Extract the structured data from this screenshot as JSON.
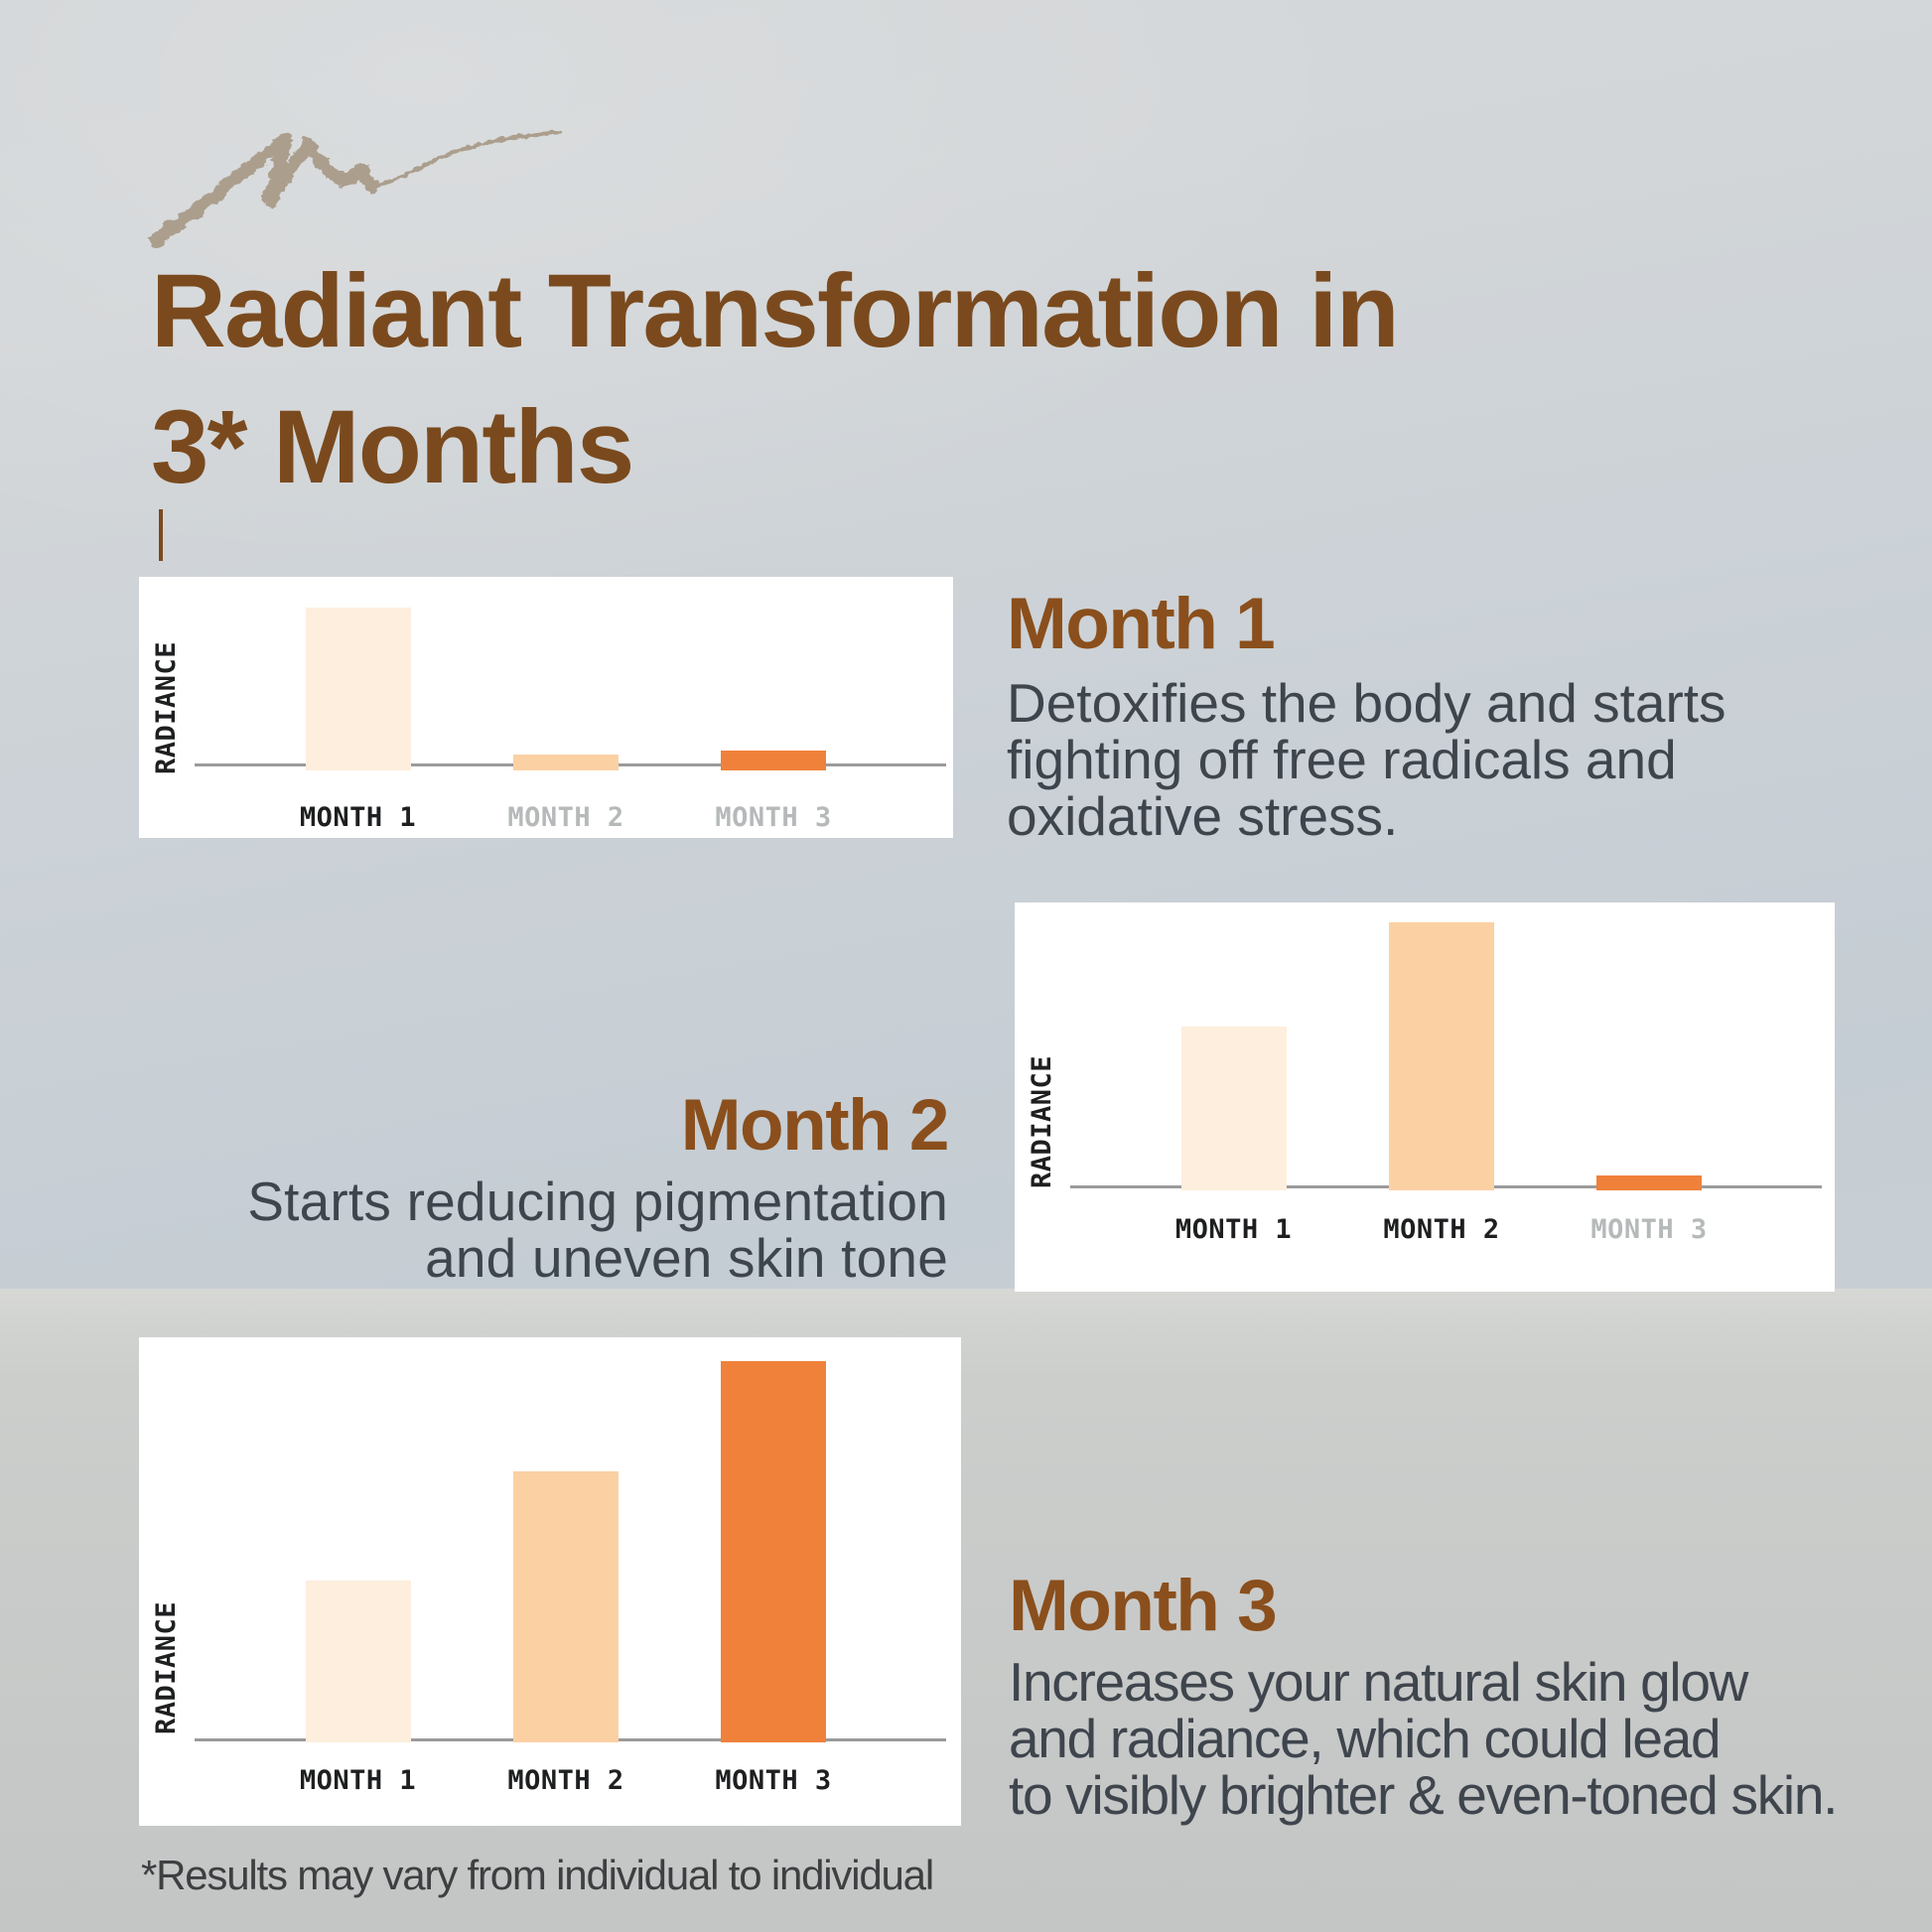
{
  "title": {
    "lines": "Radiant Transformation in\n3* Months"
  },
  "months": [
    {
      "heading": "Month 1",
      "body": "Detoxifies the body and starts\nfighting off free radicals and\noxidative stress."
    },
    {
      "heading": "Month 2",
      "body": "Starts reducing pigmentation\nand uneven skin tone"
    },
    {
      "heading": "Month 3",
      "body": "Increases your natural skin glow\nand radiance, which could lead\nto visibly brighter & even-toned skin."
    }
  ],
  "footnote": "*Results may vary from individual to individual",
  "icons": {
    "swoosh": "pencil-scribble-stroke"
  },
  "colors": {
    "title_brown": "#7a4a1e",
    "heading_brown": "#8a4f1c",
    "body_gray": "#3f454d",
    "footnote_gray": "#3d3f41",
    "tick_dark_label": "#1e1f20",
    "tick_muted_label": "#b6b9ba",
    "axis_gray": "#9b9b9b",
    "card_white": "#ffffff",
    "swoosh_taupe": "#ab9e8d",
    "bar_month1": "#fdeedd",
    "bar_month2": "#fbd1a4",
    "bar_month3": "#f0813a"
  },
  "chart_data": [
    {
      "type": "bar",
      "title": "",
      "xlabel": "",
      "ylabel": "RADIANCE",
      "categories": [
        "MONTH 1",
        "MONTH 2",
        "MONTH 3"
      ],
      "values": [
        84,
        8,
        10
      ],
      "ylim": [
        0,
        100
      ],
      "grid": false,
      "legend": false,
      "bar_colors": [
        "#fdeedd",
        "#fbd1a4",
        "#f0813a"
      ],
      "category_label_muted": [
        false,
        true,
        true
      ]
    },
    {
      "type": "bar",
      "title": "",
      "xlabel": "",
      "ylabel": "RADIANCE",
      "categories": [
        "MONTH 1",
        "MONTH 2",
        "MONTH 3"
      ],
      "values": [
        57,
        93,
        5
      ],
      "ylim": [
        0,
        100
      ],
      "grid": false,
      "legend": false,
      "bar_colors": [
        "#fdeedd",
        "#fbd1a4",
        "#f0813a"
      ],
      "category_label_muted": [
        false,
        false,
        true
      ]
    },
    {
      "type": "bar",
      "title": "",
      "xlabel": "",
      "ylabel": "RADIANCE",
      "categories": [
        "MONTH 1",
        "MONTH 2",
        "MONTH 3"
      ],
      "values": [
        40,
        67,
        94
      ],
      "ylim": [
        0,
        100
      ],
      "grid": false,
      "legend": false,
      "bar_colors": [
        "#fdeedd",
        "#fbd1a4",
        "#f0813a"
      ],
      "category_label_muted": [
        false,
        false,
        false
      ]
    }
  ]
}
